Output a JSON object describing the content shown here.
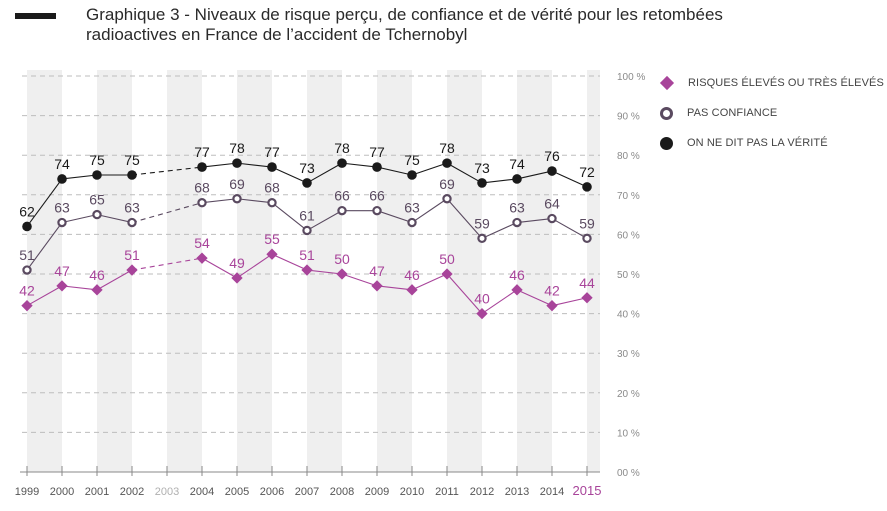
{
  "chart_data": {
    "type": "line",
    "title": "Graphique 3 - Niveaux de risque perçu, de confiance et de vérité pour les retombées radioactives en France de l’accident de Tchernobyl",
    "title_lines": [
      "Graphique 3 - Niveaux de risque perçu, de confiance et de vérité pour les retombées",
      "radioactives en France de l’accident de Tchernobyl"
    ],
    "xlabel": "",
    "ylabel": "",
    "x": [
      "1999",
      "2000",
      "2001",
      "2002",
      "2003",
      "2004",
      "2005",
      "2006",
      "2007",
      "2008",
      "2009",
      "2010",
      "2011",
      "2012",
      "2013",
      "2014",
      "2015"
    ],
    "x_highlight": "2015",
    "x_muted": "2003",
    "ylim": [
      0,
      100
    ],
    "yticks": [
      0,
      10,
      20,
      30,
      40,
      50,
      60,
      70,
      80,
      90,
      100
    ],
    "ytick_labels": [
      "00 %",
      "10 %",
      "20 %",
      "30 %",
      "40 %",
      "50 %",
      "60 %",
      "70 %",
      "80 %",
      "90 %",
      "100 %"
    ],
    "y_axis_position": "right",
    "grid": true,
    "legend_position": "right",
    "missing_note": "No data for 2003; gap bridged with dashed segment",
    "series": [
      {
        "name": "ON NE DIT PAS LA VÉRITÉ",
        "marker": "dot",
        "color": "#1a1a1a",
        "values": [
          62,
          74,
          75,
          75,
          null,
          77,
          78,
          77,
          73,
          78,
          77,
          75,
          78,
          73,
          74,
          76,
          72
        ]
      },
      {
        "name": "PAS CONFIANCE",
        "marker": "ring",
        "color": "#5a4a60",
        "values": [
          51,
          63,
          65,
          63,
          null,
          68,
          69,
          68,
          61,
          66,
          66,
          63,
          69,
          59,
          63,
          64,
          59
        ]
      },
      {
        "name": "RISQUES ÉLEVÉS OU TRÈS ÉLEVÉS",
        "marker": "diamond",
        "color": "#a8449a",
        "values": [
          42,
          47,
          46,
          51,
          null,
          54,
          49,
          55,
          51,
          50,
          47,
          46,
          50,
          40,
          46,
          42,
          44
        ]
      }
    ],
    "legend": [
      "RISQUES ÉLEVÉS OU TRÈS ÉLEVÉS",
      "PAS CONFIANCE",
      "ON NE DIT PAS LA VÉRITÉ"
    ]
  },
  "colors": {
    "highlight": "#a8449a",
    "muted_label": "#b0b0b0",
    "band": "#efefef",
    "grid": "#bdbdbd",
    "axis_label": "#8a8a8a"
  }
}
